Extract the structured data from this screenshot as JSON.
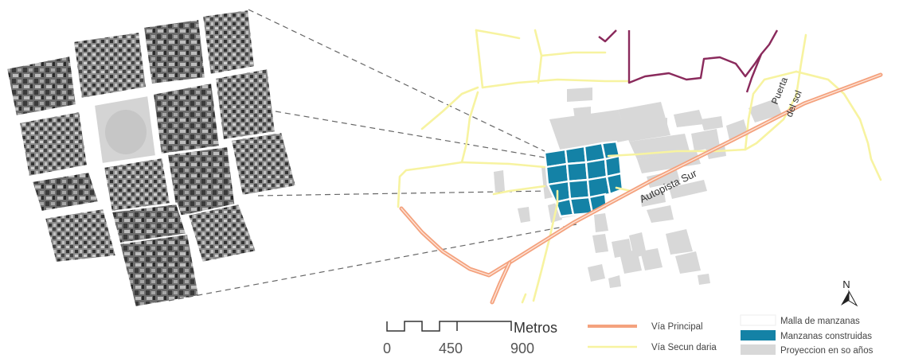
{
  "map": {
    "road_labels": {
      "autopista": "Autopista Sur",
      "puerta_del_sol_line1": "Puerta",
      "puerta_del_sol_line2": "del sol"
    },
    "north_label": "N"
  },
  "scale_bar": {
    "unit": "Metros",
    "ticks": [
      "0",
      "450",
      "900"
    ]
  },
  "legend": {
    "via_principal": "Vía Principal",
    "via_secundaria": "Vía Secun daria",
    "malla": "Malla de manzanas",
    "construidas": "Manzanas construidas",
    "proyeccion": "Proyeccion en so años"
  },
  "colors": {
    "via_principal": "#f4a27e",
    "via_secundaria": "#f7f3a0",
    "manzanas_construidas": "#1482a6",
    "proyeccion": "#d8d8d8",
    "boundary": "#8a2a5c",
    "leader_lines": "#666666"
  }
}
